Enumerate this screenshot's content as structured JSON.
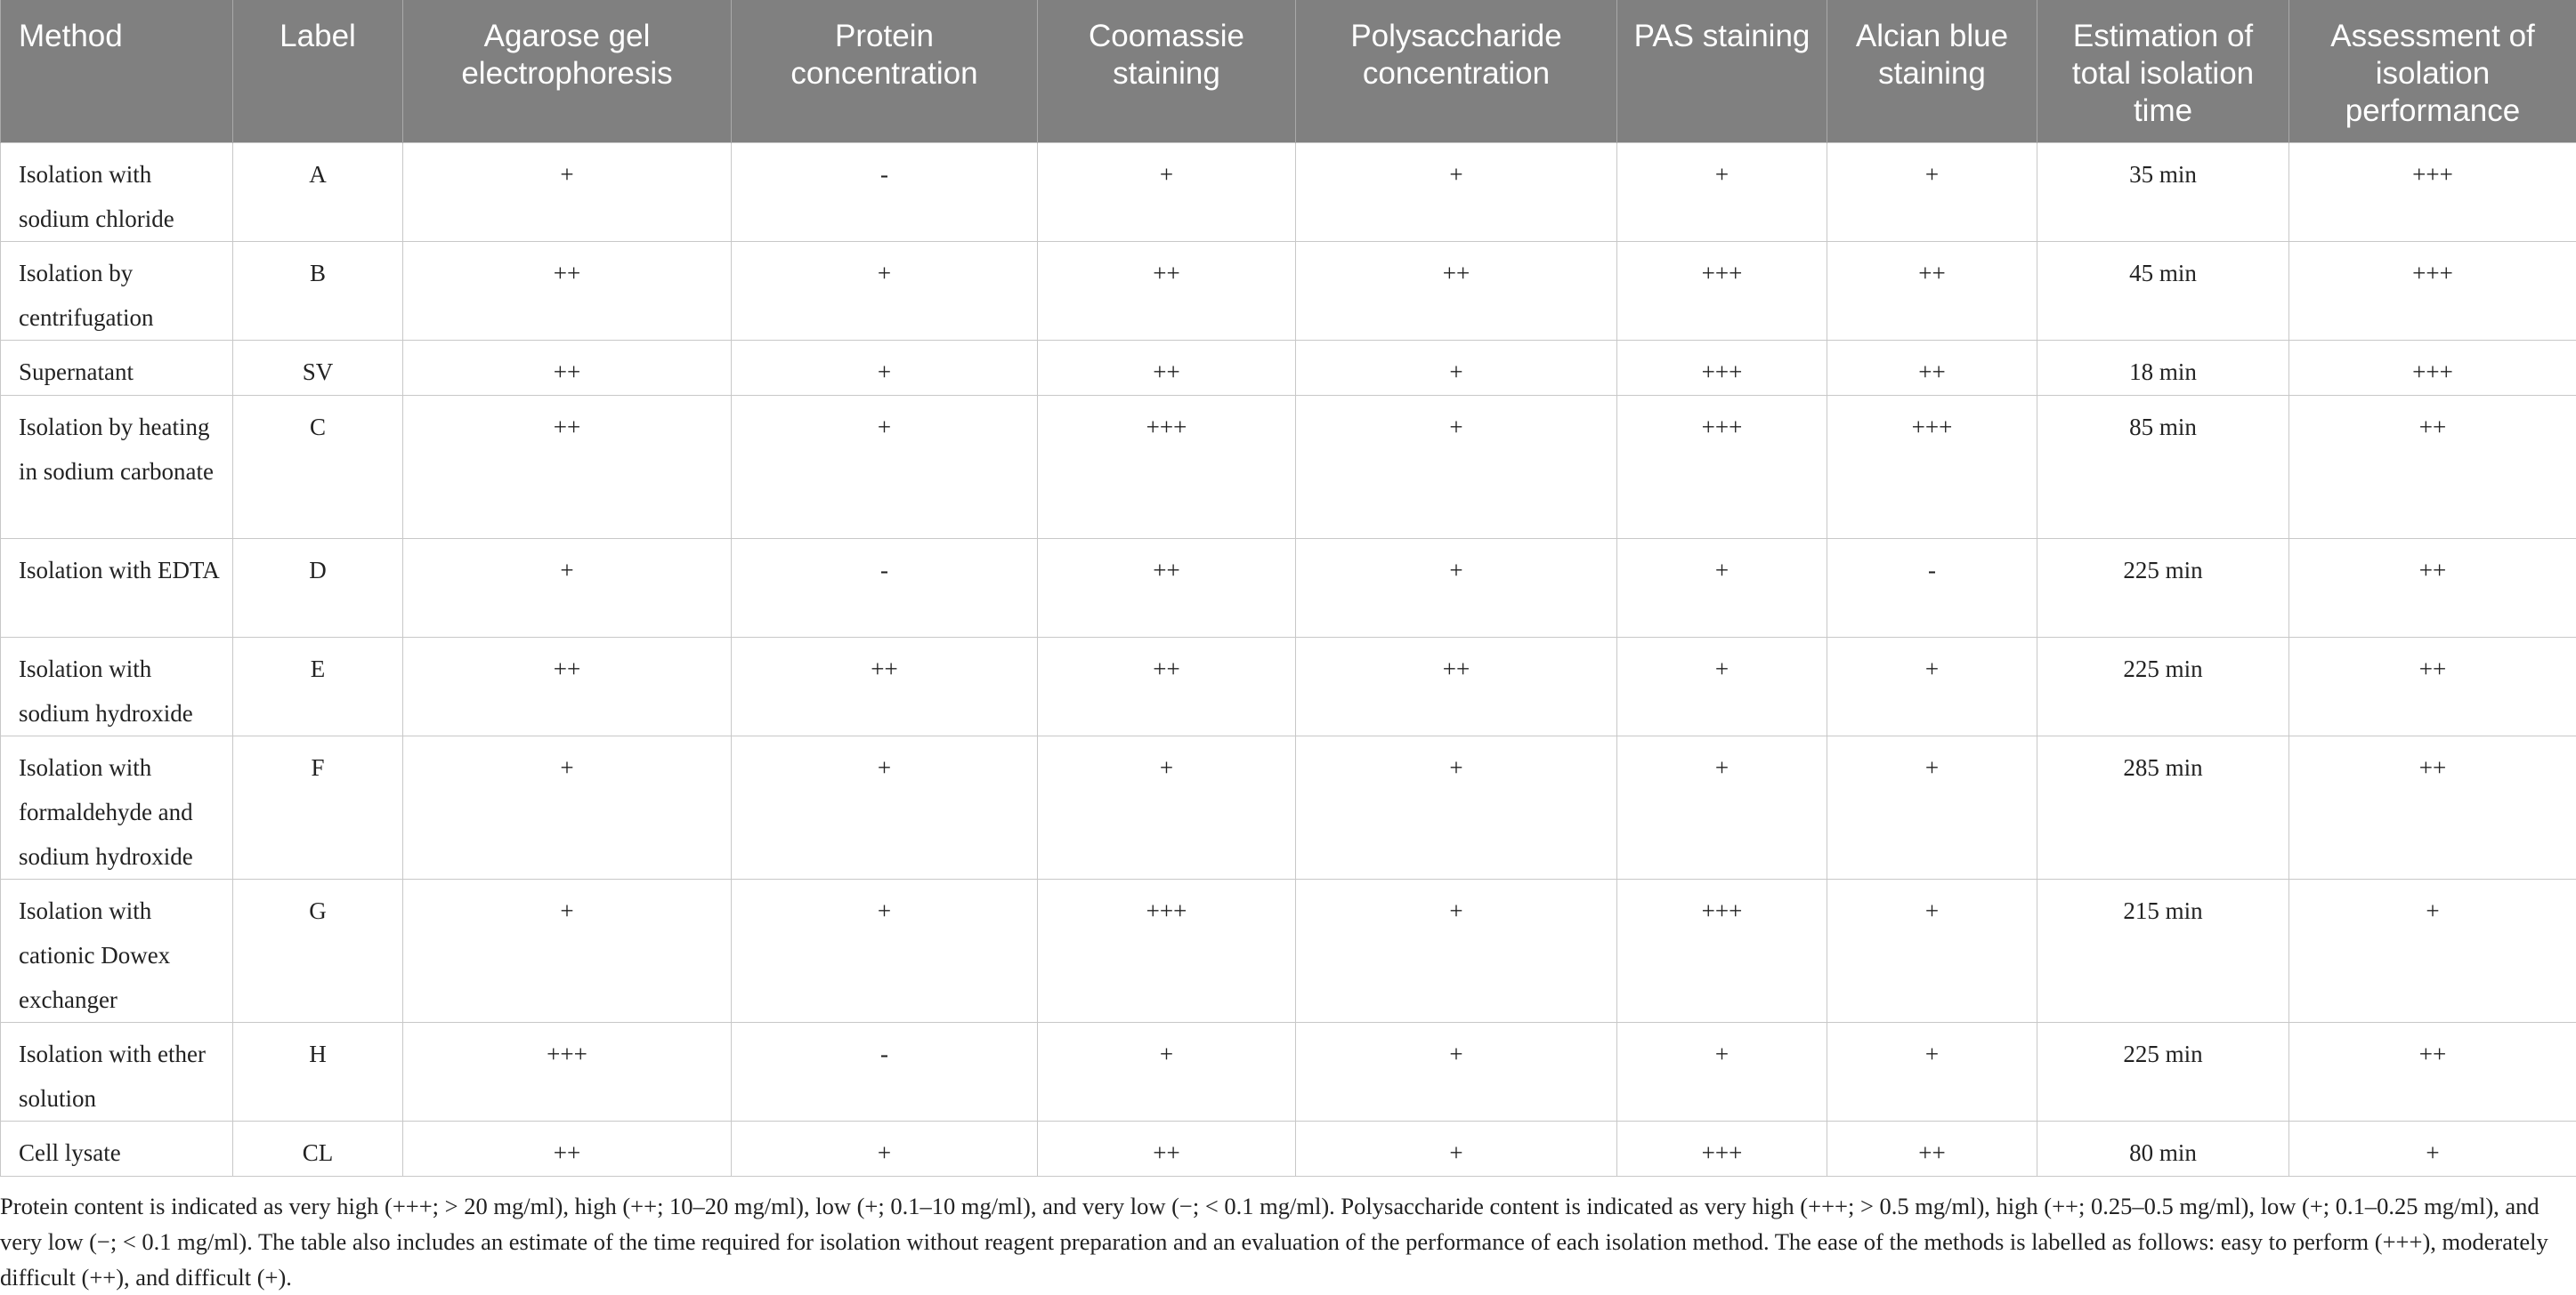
{
  "table": {
    "headers": [
      "Method",
      "Label",
      "Agarose gel electrophoresis",
      "Protein concentration",
      "Coomassie staining",
      "Polysaccharide concentration",
      "PAS staining",
      "Alcian blue staining",
      "Estimation of total isolation time",
      "Assessment of isolation performance"
    ],
    "rows": [
      [
        "Isolation with sodium chloride",
        "A",
        "+",
        "-",
        "+",
        "+",
        "+",
        "+",
        "35 min",
        "+++"
      ],
      [
        "Isolation by centrifugation",
        "B",
        "++",
        "+",
        "++",
        "++",
        "+++",
        "++",
        "45 min",
        "+++"
      ],
      [
        "Supernatant",
        "SV",
        "++",
        "+",
        "++",
        "+",
        "+++",
        "++",
        "18 min",
        "+++"
      ],
      [
        "Isolation by heating in sodium carbonate",
        "C",
        "++",
        "+",
        "+++",
        "+",
        "+++",
        "+++",
        "85 min",
        "++"
      ],
      [
        "Isolation with EDTA",
        "D",
        "+",
        "-",
        "++",
        "+",
        "+",
        "-",
        "225 min",
        "++"
      ],
      [
        "Isolation with sodium hydroxide",
        "E",
        "++",
        "++",
        "++",
        "++",
        "+",
        "+",
        "225 min",
        "++"
      ],
      [
        "Isolation with formaldehyde and sodium hydroxide",
        "F",
        "+",
        "+",
        "+",
        "+",
        "+",
        "+",
        "285 min",
        "++"
      ],
      [
        "Isolation with cationic Dowex exchanger",
        "G",
        "+",
        "+",
        "+++",
        "+",
        "+++",
        "+",
        "215 min",
        "+"
      ],
      [
        "Isolation with ether solution",
        "H",
        "+++",
        "-",
        "+",
        "+",
        "+",
        "+",
        "225 min",
        "++"
      ],
      [
        "Cell lysate",
        "CL",
        "++",
        "+",
        "++",
        "+",
        "+++",
        "++",
        "80 min",
        "+"
      ]
    ]
  },
  "footnote": "Protein content is indicated as very high (+++; > 20 mg/ml), high (++; 10–20 mg/ml), low (+; 0.1–10 mg/ml), and very low (−; < 0.1 mg/ml). Polysaccharide content is indicated as very high (+++; > 0.5 mg/ml), high (++; 0.25–0.5 mg/ml), low (+; 0.1–0.25 mg/ml), and very low (−; < 0.1 mg/ml). The table also includes an estimate of the time required for isolation without reagent preparation and an evaluation of the performance of each isolation method. The ease of the methods is labelled as follows: easy to perform (+++), moderately difficult (++), and difficult (+).",
  "colors": {
    "header_bg": "#808080",
    "header_text": "#ffffff",
    "grid_line": "#c8c8c8",
    "body_text": "#222222"
  }
}
